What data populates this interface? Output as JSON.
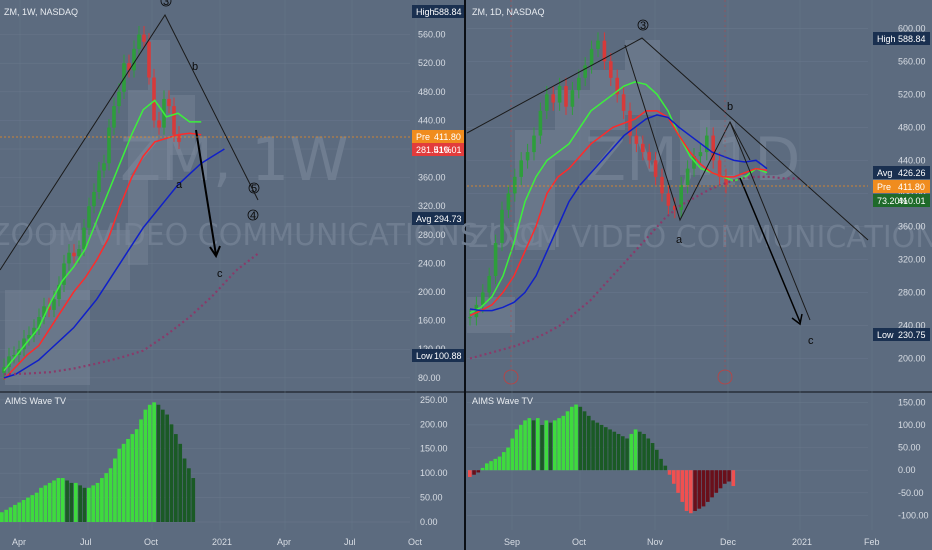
{
  "colors": {
    "background": "#5c6b7f",
    "grid": "#6a788c",
    "bull": "#2e9d3c",
    "bear": "#d73a3a",
    "green_ma": "#3cf03c",
    "red_ma": "#ff2a2a",
    "blue_ma": "#1020c8",
    "purple_ma": "#8a3a6a",
    "tag_dark": "#1a3050",
    "tag_orange": "#f08c1e",
    "tag_red": "#e23c3c",
    "tag_green": "#1e6a2a",
    "osc_green_light": "#3edb3e",
    "osc_green_dark": "#1a5a25",
    "osc_red_light": "#f05050",
    "osc_red_dark": "#6a0f1a"
  },
  "chart_data": [
    {
      "type": "line",
      "title": "ZM, 1W, NASDAQ",
      "watermark": "ZOOM VIDEO COMMUNICATIONS INC",
      "watermark_ticker": "ZM, 1W",
      "x_labels": [
        "Apr",
        "Jul",
        "Oct",
        "2021",
        "Apr",
        "Jul",
        "Oct"
      ],
      "y_ticks": [
        "560.00",
        "520.00",
        "480.00",
        "440.00",
        "400.00",
        "360.00",
        "320.00",
        "280.00",
        "240.00",
        "200.00",
        "160.00",
        "120.00",
        "80.00"
      ],
      "ylim": [
        70,
        600
      ],
      "price_tags": [
        {
          "label": "High",
          "value": "588.84",
          "kind": "dark"
        },
        {
          "label": "Pre",
          "value": "411.80",
          "kind": "orange"
        },
        {
          "label": "281.51%",
          "value": "410.01",
          "kind": "red"
        },
        {
          "label": "Avg",
          "value": "294.73",
          "kind": "dark"
        },
        {
          "label": "Low",
          "value": "100.88",
          "kind": "dark"
        }
      ],
      "wave_labels": [
        "3",
        "b",
        "a",
        "c",
        "5",
        "4"
      ],
      "series": [
        {
          "name": "",
          "color": "green_ma",
          "x": [
            0,
            4,
            8,
            12,
            16,
            20,
            24,
            28,
            32,
            36,
            40,
            44,
            48,
            52,
            56,
            60,
            64,
            68
          ],
          "y": [
            90,
            110,
            130,
            150,
            185,
            215,
            235,
            260,
            300,
            340,
            380,
            420,
            455,
            468,
            445,
            450,
            438,
            438
          ]
        },
        {
          "name": "",
          "color": "red_ma",
          "x": [
            0,
            4,
            8,
            12,
            16,
            20,
            24,
            28,
            32,
            36,
            40,
            44,
            48,
            52,
            56,
            60,
            64,
            68
          ],
          "y": [
            78,
            95,
            112,
            125,
            150,
            175,
            200,
            220,
            245,
            275,
            320,
            360,
            390,
            410,
            415,
            420,
            422,
            420
          ]
        },
        {
          "name": "",
          "color": "blue_ma",
          "x": [
            0,
            4,
            8,
            12,
            16,
            20,
            24,
            28,
            32,
            36,
            40,
            44,
            48,
            52,
            56,
            60,
            64,
            68,
            72,
            76
          ],
          "y": [
            80,
            85,
            95,
            105,
            120,
            135,
            150,
            170,
            190,
            215,
            240,
            265,
            290,
            310,
            330,
            350,
            365,
            380,
            390,
            400
          ]
        },
        {
          "name": "",
          "color": "purple_ma",
          "x": [
            0,
            8,
            16,
            24,
            32,
            40,
            48,
            56,
            64,
            72,
            80,
            88
          ],
          "y": [
            85,
            86,
            88,
            93,
            100,
            108,
            118,
            140,
            165,
            195,
            230,
            255
          ]
        }
      ],
      "candles_close": [
        95,
        110,
        112,
        120,
        135,
        140,
        150,
        165,
        180,
        175,
        190,
        210,
        240,
        255,
        250,
        260,
        290,
        320,
        340,
        370,
        380,
        430,
        460,
        480,
        520,
        510,
        540,
        560,
        550,
        500,
        440,
        430,
        470,
        460,
        420,
        410
      ]
    },
    {
      "type": "line",
      "title": "ZM, 1D, NASDAQ",
      "watermark": "ZOOM VIDEO COMMUNICATIONS INC",
      "watermark_ticker": "ZM, 1D",
      "x_labels": [
        "Sep",
        "Oct",
        "Nov",
        "Dec",
        "2021",
        "Feb"
      ],
      "y_ticks": [
        "600.00",
        "560.00",
        "520.00",
        "480.00",
        "440.00",
        "400.00",
        "360.00",
        "320.00",
        "280.00",
        "240.00",
        "200.00"
      ],
      "ylim": [
        180,
        610
      ],
      "price_tags": [
        {
          "label": "High",
          "value": "588.84",
          "kind": "dark"
        },
        {
          "label": "Avg",
          "value": "426.26",
          "kind": "dark"
        },
        {
          "label": "Pre",
          "value": "411.80",
          "kind": "orange"
        },
        {
          "label": "73.20%",
          "value": "410.01",
          "kind": "green"
        },
        {
          "label": "Low",
          "value": "230.75",
          "kind": "dark"
        }
      ],
      "wave_labels": [
        "3",
        "b",
        "a",
        "c"
      ]
    },
    {
      "type": "bar",
      "title": "AIMS Wave TV",
      "y_ticks": [
        "250.00",
        "200.00",
        "150.00",
        "100.00",
        "50.00",
        "0.00"
      ],
      "ylim": [
        0,
        260
      ],
      "values": [
        20,
        25,
        30,
        35,
        40,
        45,
        50,
        55,
        60,
        70,
        75,
        80,
        85,
        90,
        90,
        85,
        80,
        80,
        75,
        70,
        70,
        75,
        80,
        90,
        100,
        110,
        130,
        150,
        160,
        170,
        180,
        190,
        210,
        230,
        240,
        245,
        240,
        230,
        220,
        200,
        180,
        160,
        130,
        110,
        90
      ]
    },
    {
      "type": "bar",
      "title": "AIMS Wave TV",
      "y_ticks": [
        "150.00",
        "100.00",
        "50.00",
        "0.00",
        "-50.00",
        "-100.00"
      ],
      "ylim": [
        -110,
        155
      ],
      "values": [
        -15,
        -10,
        -5,
        5,
        15,
        20,
        25,
        30,
        40,
        50,
        70,
        90,
        100,
        110,
        115,
        110,
        115,
        100,
        110,
        105,
        110,
        115,
        120,
        130,
        140,
        145,
        140,
        130,
        120,
        110,
        105,
        100,
        95,
        90,
        85,
        80,
        75,
        70,
        80,
        90,
        85,
        80,
        70,
        60,
        45,
        25,
        10,
        -10,
        -30,
        -50,
        -70,
        -90,
        -95,
        -90,
        -85,
        -80,
        -70,
        -60,
        -50,
        -40,
        -30,
        -25,
        -35
      ]
    }
  ]
}
